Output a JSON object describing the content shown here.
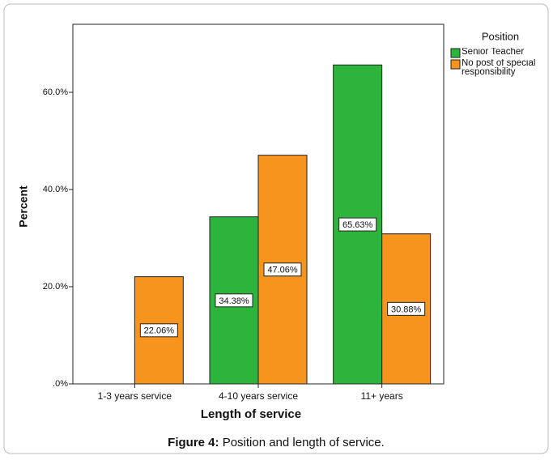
{
  "chart_data": {
    "type": "bar",
    "x_label": "Length of service",
    "y_label": "Percent",
    "legend_title": "Position",
    "caption_label": "Figure 4:",
    "caption_text": "Position and length of service.",
    "categories": [
      "1-3 years service",
      "4-10 years service",
      "11+ years"
    ],
    "series": [
      {
        "name": "Senior Teacher",
        "color": "#2db43c",
        "values": [
          0,
          34.38,
          65.63
        ],
        "value_labels": [
          null,
          "34.38%",
          "65.63%"
        ]
      },
      {
        "name": "No post of special responsibility",
        "color": "#f7941d",
        "values": [
          22.06,
          47.06,
          30.88
        ],
        "value_labels": [
          "22.06%",
          "47.06%",
          "30.88%"
        ]
      }
    ],
    "ylim": [
      0,
      74
    ],
    "yticks": [
      {
        "value": 0,
        "label": ".0%"
      },
      {
        "value": 20,
        "label": "20.0%"
      },
      {
        "value": 40,
        "label": "40.0%"
      },
      {
        "value": 60,
        "label": "60.0%"
      }
    ],
    "grid": false,
    "legend": "right"
  }
}
